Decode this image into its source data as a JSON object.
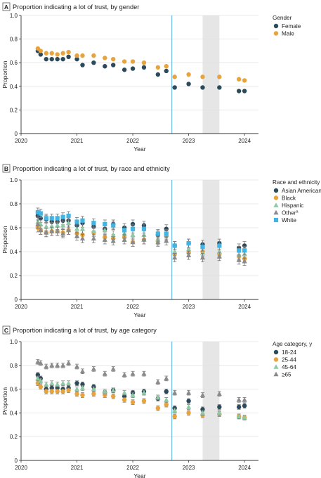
{
  "colors": {
    "teal": "#2c4a5a",
    "orange": "#e8a33c",
    "green": "#8ec9a6",
    "gray": "#8a8a8a",
    "blue": "#41b4e3",
    "marker_line": "#4fb3de",
    "shade": "#e6e6e6",
    "axis": "#333333"
  },
  "chart_data": [
    {
      "type": "scatter",
      "panel_letter": "A",
      "title": "Proportion indicating a lot of trust, by gender",
      "xlabel": "Year",
      "ylabel": "Proportion",
      "xlim": [
        2020,
        2024.25
      ],
      "ylim": [
        0,
        1.0
      ],
      "xticks": [
        "2020",
        "2021",
        "2022",
        "2023",
        "2024"
      ],
      "yticks": [
        "0",
        "0.2",
        "0.4",
        "0.6",
        "0.8",
        "1.0"
      ],
      "grid": true,
      "legend_title": "Gender",
      "legend_position": "top-right",
      "vline_x": 2022.7,
      "shaded_x": [
        2023.25,
        2023.55
      ],
      "series": [
        {
          "name": "Female",
          "color": "teal",
          "marker": "circle",
          "x": [
            2020.3,
            2020.35,
            2020.45,
            2020.55,
            2020.65,
            2020.75,
            2020.85,
            2021.0,
            2021.1,
            2021.3,
            2021.5,
            2021.65,
            2021.85,
            2022.0,
            2022.2,
            2022.45,
            2022.6,
            2022.75,
            2023.0,
            2023.25,
            2023.55,
            2023.9,
            2024.0
          ],
          "y": [
            0.7,
            0.67,
            0.63,
            0.63,
            0.63,
            0.63,
            0.65,
            0.63,
            0.58,
            0.6,
            0.57,
            0.58,
            0.54,
            0.55,
            0.56,
            0.5,
            0.53,
            0.39,
            0.42,
            0.39,
            0.39,
            0.36,
            0.36
          ]
        },
        {
          "name": "Male",
          "color": "orange",
          "marker": "circle",
          "x": [
            2020.3,
            2020.35,
            2020.45,
            2020.55,
            2020.65,
            2020.75,
            2020.85,
            2021.0,
            2021.1,
            2021.3,
            2021.5,
            2021.65,
            2021.85,
            2022.0,
            2022.2,
            2022.45,
            2022.6,
            2022.75,
            2023.0,
            2023.25,
            2023.55,
            2023.9,
            2024.0
          ],
          "y": [
            0.72,
            0.7,
            0.68,
            0.68,
            0.67,
            0.68,
            0.69,
            0.66,
            0.66,
            0.66,
            0.64,
            0.63,
            0.61,
            0.61,
            0.6,
            0.56,
            0.57,
            0.48,
            0.5,
            0.48,
            0.48,
            0.46,
            0.45
          ]
        }
      ]
    },
    {
      "type": "scatter",
      "panel_letter": "B",
      "title": "Proportion indicating a lot of trust, by race and ethnicity",
      "xlabel": "Year",
      "ylabel": "Proportion",
      "xlim": [
        2020,
        2024.25
      ],
      "ylim": [
        0,
        1.0
      ],
      "xticks": [
        "2020",
        "2021",
        "2022",
        "2023",
        "2024"
      ],
      "yticks": [
        "0",
        "0.2",
        "0.4",
        "0.6",
        "0.8",
        "1.0"
      ],
      "grid": true,
      "legend_title": "Race and ethnicity",
      "legend_position": "top-right",
      "vline_x": 2022.7,
      "shaded_x": [
        2023.25,
        2023.55
      ],
      "series": [
        {
          "name": "Asian American",
          "color": "teal",
          "marker": "circle",
          "x": [
            2020.3,
            2020.35,
            2020.45,
            2020.55,
            2020.65,
            2020.75,
            2020.85,
            2021.0,
            2021.1,
            2021.3,
            2021.5,
            2021.65,
            2021.85,
            2022.0,
            2022.2,
            2022.45,
            2022.6,
            2022.75,
            2023.0,
            2023.25,
            2023.55,
            2023.9,
            2024.0
          ],
          "y": [
            0.7,
            0.68,
            0.67,
            0.65,
            0.65,
            0.66,
            0.66,
            0.62,
            0.64,
            0.61,
            0.59,
            0.63,
            0.6,
            0.63,
            0.62,
            0.54,
            0.59,
            0.45,
            0.47,
            0.46,
            0.47,
            0.43,
            0.45
          ]
        },
        {
          "name": "Black",
          "color": "orange",
          "marker": "circle",
          "x": [
            2020.3,
            2020.35,
            2020.45,
            2020.55,
            2020.65,
            2020.75,
            2020.85,
            2021.0,
            2021.1,
            2021.3,
            2021.5,
            2021.65,
            2021.85,
            2022.0,
            2022.2,
            2022.45,
            2022.6,
            2022.75,
            2023.0,
            2023.25,
            2023.55,
            2023.9,
            2024.0
          ],
          "y": [
            0.6,
            0.58,
            0.56,
            0.57,
            0.57,
            0.56,
            0.58,
            0.55,
            0.54,
            0.56,
            0.52,
            0.51,
            0.52,
            0.48,
            0.5,
            0.49,
            0.53,
            0.38,
            0.39,
            0.4,
            0.38,
            0.36,
            0.34
          ]
        },
        {
          "name": "Hispanic",
          "color": "green",
          "marker": "triangle",
          "x": [
            2020.3,
            2020.35,
            2020.45,
            2020.55,
            2020.65,
            2020.75,
            2020.85,
            2021.0,
            2021.1,
            2021.3,
            2021.5,
            2021.65,
            2021.85,
            2022.0,
            2022.2,
            2022.45,
            2022.6,
            2022.75,
            2023.0,
            2023.25,
            2023.55,
            2023.9,
            2024.0
          ],
          "y": [
            0.65,
            0.63,
            0.61,
            0.61,
            0.62,
            0.62,
            0.64,
            0.59,
            0.59,
            0.57,
            0.58,
            0.54,
            0.55,
            0.54,
            0.54,
            0.5,
            0.54,
            0.4,
            0.42,
            0.39,
            0.4,
            0.37,
            0.38
          ]
        },
        {
          "name": "Other",
          "legend_superscript": "a",
          "color": "gray",
          "marker": "triangle",
          "x": [
            2020.3,
            2020.35,
            2020.45,
            2020.55,
            2020.65,
            2020.75,
            2020.85,
            2021.0,
            2021.1,
            2021.3,
            2021.5,
            2021.65,
            2021.85,
            2022.0,
            2022.2,
            2022.45,
            2022.6,
            2022.75,
            2023.0,
            2023.25,
            2023.55,
            2023.9,
            2024.0
          ],
          "y": [
            0.63,
            0.58,
            0.56,
            0.57,
            0.57,
            0.55,
            0.58,
            0.53,
            0.51,
            0.51,
            0.5,
            0.49,
            0.5,
            0.48,
            0.5,
            0.48,
            0.49,
            0.35,
            0.37,
            0.35,
            0.36,
            0.33,
            0.32
          ]
        },
        {
          "name": "White",
          "color": "blue",
          "marker": "square",
          "x": [
            2020.3,
            2020.35,
            2020.45,
            2020.55,
            2020.65,
            2020.75,
            2020.85,
            2021.0,
            2021.1,
            2021.3,
            2021.5,
            2021.65,
            2021.85,
            2022.0,
            2022.2,
            2022.45,
            2022.6,
            2022.75,
            2023.0,
            2023.25,
            2023.55,
            2023.9,
            2024.0
          ],
          "y": [
            0.73,
            0.72,
            0.68,
            0.68,
            0.68,
            0.69,
            0.7,
            0.65,
            0.66,
            0.64,
            0.63,
            0.62,
            0.58,
            0.59,
            0.59,
            0.55,
            0.55,
            0.45,
            0.47,
            0.44,
            0.45,
            0.41,
            0.41
          ]
        }
      ]
    },
    {
      "type": "scatter",
      "panel_letter": "C",
      "title": "Proportion indicating a lot of trust, by age category",
      "xlabel": "Year",
      "ylabel": "Proportion",
      "xlim": [
        2020,
        2024.25
      ],
      "ylim": [
        0,
        1.0
      ],
      "xticks": [
        "2020",
        "2021",
        "2022",
        "2023",
        "2024"
      ],
      "yticks": [
        "0",
        "0.2",
        "0.4",
        "0.6",
        "0.8",
        "1.0"
      ],
      "grid": true,
      "legend_title": "Age category, y",
      "legend_position": "top-right",
      "vline_x": 2022.7,
      "shaded_x": [
        2023.25,
        2023.55
      ],
      "series": [
        {
          "name": "18-24",
          "color": "teal",
          "marker": "circle",
          "x": [
            2020.3,
            2020.35,
            2020.45,
            2020.55,
            2020.65,
            2020.75,
            2020.85,
            2021.0,
            2021.1,
            2021.3,
            2021.5,
            2021.65,
            2021.85,
            2022.0,
            2022.2,
            2022.45,
            2022.6,
            2022.75,
            2023.0,
            2023.25,
            2023.55,
            2023.9,
            2024.0
          ],
          "y": [
            0.72,
            0.69,
            0.6,
            0.61,
            0.61,
            0.6,
            0.61,
            0.65,
            0.64,
            0.62,
            0.57,
            0.59,
            0.54,
            0.57,
            0.58,
            0.52,
            0.58,
            0.44,
            0.5,
            0.43,
            0.45,
            0.45,
            0.46
          ]
        },
        {
          "name": "25-44",
          "color": "orange",
          "marker": "circle",
          "x": [
            2020.3,
            2020.35,
            2020.45,
            2020.55,
            2020.65,
            2020.75,
            2020.85,
            2021.0,
            2021.1,
            2021.3,
            2021.5,
            2021.65,
            2021.85,
            2022.0,
            2022.2,
            2022.45,
            2022.6,
            2022.75,
            2023.0,
            2023.25,
            2023.55,
            2023.9,
            2024.0
          ],
          "y": [
            0.65,
            0.62,
            0.58,
            0.58,
            0.58,
            0.58,
            0.59,
            0.56,
            0.55,
            0.56,
            0.55,
            0.54,
            0.51,
            0.49,
            0.5,
            0.44,
            0.47,
            0.37,
            0.4,
            0.38,
            0.39,
            0.37,
            0.36
          ]
        },
        {
          "name": "45-64",
          "color": "green",
          "marker": "triangle",
          "x": [
            2020.3,
            2020.35,
            2020.45,
            2020.55,
            2020.65,
            2020.75,
            2020.85,
            2021.0,
            2021.1,
            2021.3,
            2021.5,
            2021.65,
            2021.85,
            2022.0,
            2022.2,
            2022.45,
            2022.6,
            2022.75,
            2023.0,
            2023.25,
            2023.55,
            2023.9,
            2024.0
          ],
          "y": [
            0.69,
            0.67,
            0.64,
            0.65,
            0.64,
            0.65,
            0.65,
            0.6,
            0.61,
            0.6,
            0.58,
            0.59,
            0.57,
            0.55,
            0.57,
            0.53,
            0.51,
            0.42,
            0.45,
            0.4,
            0.4,
            0.37,
            0.36
          ]
        },
        {
          "name": "≥65",
          "color": "gray",
          "marker": "triangle",
          "x": [
            2020.3,
            2020.35,
            2020.45,
            2020.55,
            2020.65,
            2020.75,
            2020.85,
            2021.0,
            2021.1,
            2021.3,
            2021.5,
            2021.65,
            2021.85,
            2022.0,
            2022.2,
            2022.45,
            2022.6,
            2022.75,
            2023.0,
            2023.25,
            2023.55,
            2023.9,
            2024.0
          ],
          "y": [
            0.83,
            0.82,
            0.79,
            0.8,
            0.8,
            0.8,
            0.82,
            0.79,
            0.75,
            0.77,
            0.73,
            0.77,
            0.72,
            0.73,
            0.73,
            0.66,
            0.69,
            0.57,
            0.57,
            0.55,
            0.56,
            0.51,
            0.51
          ]
        }
      ]
    }
  ]
}
